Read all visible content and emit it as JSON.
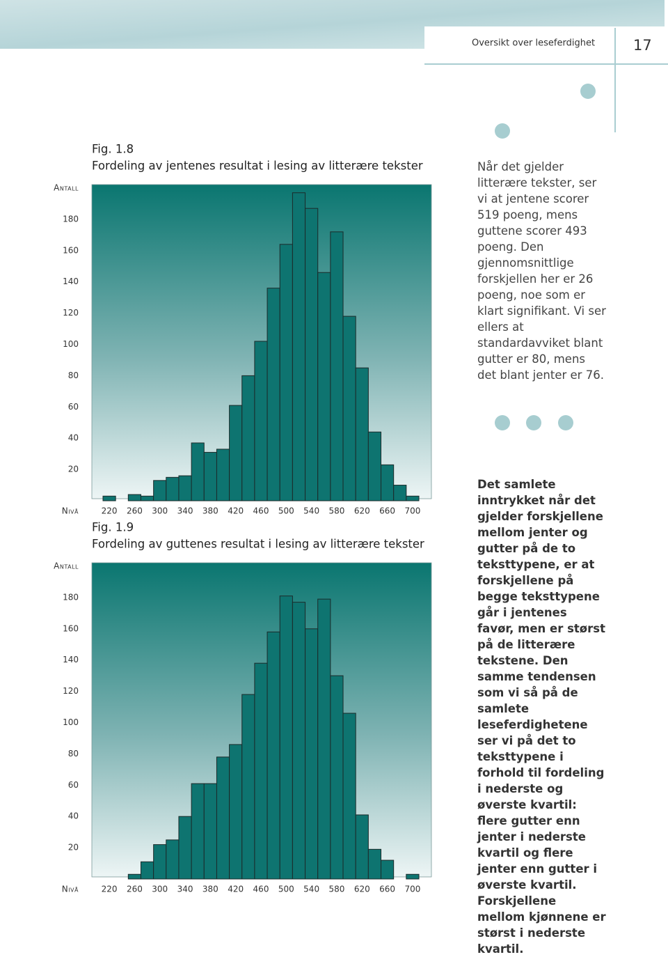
{
  "header": {
    "section": "Oversikt over leseferdighet",
    "page": "17"
  },
  "chart_data": [
    {
      "type": "histogram",
      "label": "Fig. 1.8",
      "title": "Fordeling av jentenes resultat i lesing av litterære tekster",
      "y_label": "Antall",
      "x_label": "Nivå",
      "color": "#0e7470",
      "bins": [
        210,
        230,
        250,
        270,
        290,
        310,
        330,
        350,
        370,
        390,
        410,
        430,
        450,
        470,
        490,
        510,
        530,
        550,
        570,
        590,
        610,
        630,
        650,
        670,
        690,
        710
      ],
      "counts": [
        3,
        0,
        4,
        3,
        13,
        15,
        16,
        37,
        31,
        33,
        61,
        80,
        102,
        136,
        164,
        197,
        187,
        146,
        172,
        118,
        85,
        44,
        23,
        10,
        3
      ],
      "xlim": [
        210,
        710
      ],
      "ylim": [
        0,
        200
      ],
      "xticks": [
        220,
        260,
        300,
        340,
        380,
        420,
        460,
        500,
        540,
        580,
        620,
        660,
        700
      ],
      "yticks": [
        20,
        40,
        60,
        80,
        100,
        120,
        140,
        160,
        180
      ]
    },
    {
      "type": "histogram",
      "label": "Fig. 1.9",
      "title": "Fordeling av guttenes resultat i lesing av litterære tekster",
      "y_label": "Antall",
      "x_label": "Nivå",
      "color": "#0e7470",
      "bins": [
        210,
        230,
        250,
        270,
        290,
        310,
        330,
        350,
        370,
        390,
        410,
        430,
        450,
        470,
        490,
        510,
        530,
        550,
        570,
        590,
        610,
        630,
        650,
        670,
        690,
        710
      ],
      "counts": [
        0,
        0,
        3,
        11,
        22,
        25,
        40,
        61,
        61,
        78,
        86,
        118,
        138,
        158,
        181,
        177,
        160,
        179,
        130,
        106,
        41,
        19,
        12,
        0,
        3
      ],
      "xlim": [
        210,
        710
      ],
      "ylim": [
        0,
        200
      ],
      "xticks": [
        220,
        260,
        300,
        340,
        380,
        420,
        460,
        500,
        540,
        580,
        620,
        660,
        700
      ],
      "yticks": [
        20,
        40,
        60,
        80,
        100,
        120,
        140,
        160,
        180
      ]
    }
  ],
  "sidebar": {
    "paragraphs": [
      "Når det gjelder litterære tekster, ser vi at jentene scorer 519 poeng, mens guttene scorer 493 poeng. Den gjennomsnittlige forskjellen her er 26 poeng, noe som er klart signifikant. Vi ser ellers at standardavviket blant gutter er 80, mens det blant jenter er 76.",
      "Det samlete inntrykket når det gjelder forskjellene mellom jenter og gutter på de to teksttypene, er at forskjellene på begge teksttypene går i jentenes favør, men er størst på de litterære tekstene. Den samme tendensen som vi så på de samlete leseferdighetene ser vi på det to teksttypene i forhold til fordeling i nederste og øverste kvartil: flere gutter enn jenter i nederste kvartil og flere jenter enn gutter i øverste kvartil. Forskjellene mellom kjønnene er størst i nederste kvartil."
    ]
  }
}
